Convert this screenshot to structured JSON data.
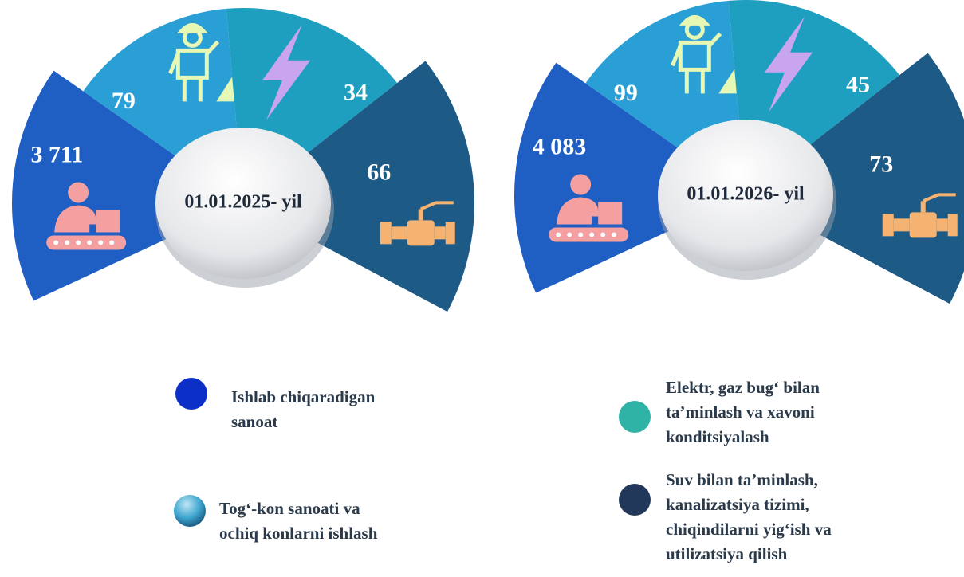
{
  "panels": [
    {
      "label": "01.01.2025- yil",
      "values": [
        "3 711",
        "79",
        "34",
        "66"
      ]
    },
    {
      "label": "01.01.2026- yil",
      "values": [
        "4 083",
        "99",
        "45",
        "73"
      ]
    }
  ],
  "legend": [
    {
      "lines": [
        "Ishlab chiqaradigan",
        " sanoat"
      ]
    },
    {
      "lines": [
        "Tog‘-kon sanoati va",
        "ochiq konlarni ishlash"
      ]
    },
    {
      "lines": [
        "Elektr, gaz bug‘ bilan",
        "ta’minlash va xavoni",
        "konditsiyalash"
      ]
    },
    {
      "lines": [
        "Suv bilan ta’minlash,",
        "kanalizatsiya tizimi,",
        "chiqindilarni yig‘ish va",
        "utilizatsiya qilish"
      ]
    }
  ]
}
